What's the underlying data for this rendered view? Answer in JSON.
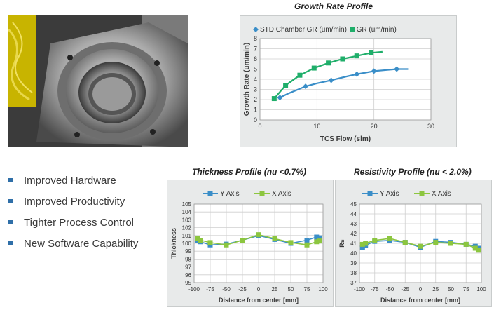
{
  "photo": {
    "alt_name": "chamber-photo"
  },
  "bullets": [
    "Improved Hardware",
    "Improved Productivity",
    "Tighter Process Control",
    "New Software Capability"
  ],
  "colors": {
    "blue": "#3a8ec8",
    "green": "#1fae6a",
    "lime": "#8cc63f",
    "panel": "#e8eaea",
    "bullet": "#2f6fa8"
  },
  "chart_data": [
    {
      "type": "line",
      "title": "Growth Rate Profile",
      "xlabel": "TCS Flow (slm)",
      "ylabel": "Growth Rate (um/min)",
      "xlim": [
        0,
        30
      ],
      "ylim": [
        0,
        8
      ],
      "xticks": [
        0,
        10,
        20,
        30
      ],
      "yticks": [
        0,
        1,
        2,
        3,
        4,
        5,
        6,
        7,
        8
      ],
      "grid": true,
      "legend": "top",
      "series": [
        {
          "name": "STD Chamber GR (um/min)",
          "marker": "diamond",
          "color": "#3a8ec8",
          "x": [
            3.5,
            8,
            12.5,
            17,
            20,
            24
          ],
          "y": [
            2.2,
            3.3,
            3.9,
            4.5,
            4.8,
            5.0
          ],
          "line_x": [
            3.5,
            5,
            6.5,
            8,
            10,
            12.5,
            15,
            17,
            20,
            22,
            24,
            26
          ],
          "line_y": [
            2.2,
            2.6,
            2.95,
            3.3,
            3.6,
            3.9,
            4.25,
            4.5,
            4.8,
            4.9,
            5.0,
            5.0
          ]
        },
        {
          "name": "GR (um/min)",
          "marker": "square",
          "color": "#1fae6a",
          "x": [
            2.5,
            4.5,
            7,
            9.5,
            12,
            14.5,
            17,
            19.5
          ],
          "y": [
            2.1,
            3.4,
            4.4,
            5.1,
            5.6,
            6.0,
            6.3,
            6.6
          ],
          "line_x": [
            2.5,
            4.5,
            7,
            9.5,
            12,
            14.5,
            17,
            19.5,
            21.5
          ],
          "line_y": [
            2.1,
            3.4,
            4.4,
            5.1,
            5.6,
            6.0,
            6.3,
            6.6,
            6.7
          ]
        }
      ]
    },
    {
      "type": "line",
      "title": "Thickness Profile (nu <0.7%)",
      "xlabel": "Distance from center [mm]",
      "ylabel": "Thickness",
      "xlim": [
        -100,
        100
      ],
      "ylim": [
        95,
        105
      ],
      "xticks": [
        -100,
        -75,
        -50,
        -25,
        0,
        25,
        50,
        75,
        100
      ],
      "yticks": [
        95,
        96,
        97,
        98,
        99,
        100,
        101,
        102,
        103,
        104,
        105
      ],
      "grid": true,
      "legend": "top",
      "series": [
        {
          "name": "Y Axis",
          "color": "#3a8ec8",
          "x": [
            -95,
            -90,
            -75,
            -50,
            -25,
            0,
            25,
            50,
            75,
            90,
            95
          ],
          "y": [
            100.4,
            100.2,
            99.8,
            99.9,
            100.4,
            101.0,
            100.5,
            100.0,
            100.4,
            100.8,
            100.7
          ]
        },
        {
          "name": "X Axis",
          "color": "#8cc63f",
          "x": [
            -95,
            -90,
            -75,
            -50,
            -25,
            0,
            25,
            50,
            75,
            90,
            95
          ],
          "y": [
            100.6,
            100.4,
            100.1,
            99.8,
            100.4,
            101.1,
            100.6,
            100.1,
            99.8,
            100.2,
            100.3
          ]
        }
      ]
    },
    {
      "type": "line",
      "title": "Resistivity Profile (nu < 2.0%)",
      "xlabel": "Distance from center [mm]",
      "ylabel": "Rs",
      "xlim": [
        -100,
        100
      ],
      "ylim": [
        37,
        45
      ],
      "xticks": [
        -100,
        -75,
        -50,
        -25,
        0,
        25,
        50,
        75,
        100
      ],
      "yticks": [
        37,
        38,
        39,
        40,
        41,
        42,
        43,
        44,
        45
      ],
      "grid": true,
      "legend": "top",
      "series": [
        {
          "name": "Y Axis",
          "color": "#3a8ec8",
          "x": [
            -95,
            -90,
            -75,
            -50,
            -25,
            0,
            25,
            50,
            75,
            90,
            95
          ],
          "y": [
            40.6,
            40.8,
            41.2,
            41.3,
            41.1,
            40.6,
            41.2,
            41.1,
            40.9,
            40.7,
            40.5
          ]
        },
        {
          "name": "X Axis",
          "color": "#8cc63f",
          "x": [
            -95,
            -90,
            -75,
            -50,
            -25,
            0,
            25,
            50,
            75,
            90,
            95
          ],
          "y": [
            40.9,
            41.0,
            41.3,
            41.5,
            41.1,
            40.7,
            41.1,
            41.0,
            40.9,
            40.5,
            40.3
          ]
        }
      ]
    }
  ]
}
